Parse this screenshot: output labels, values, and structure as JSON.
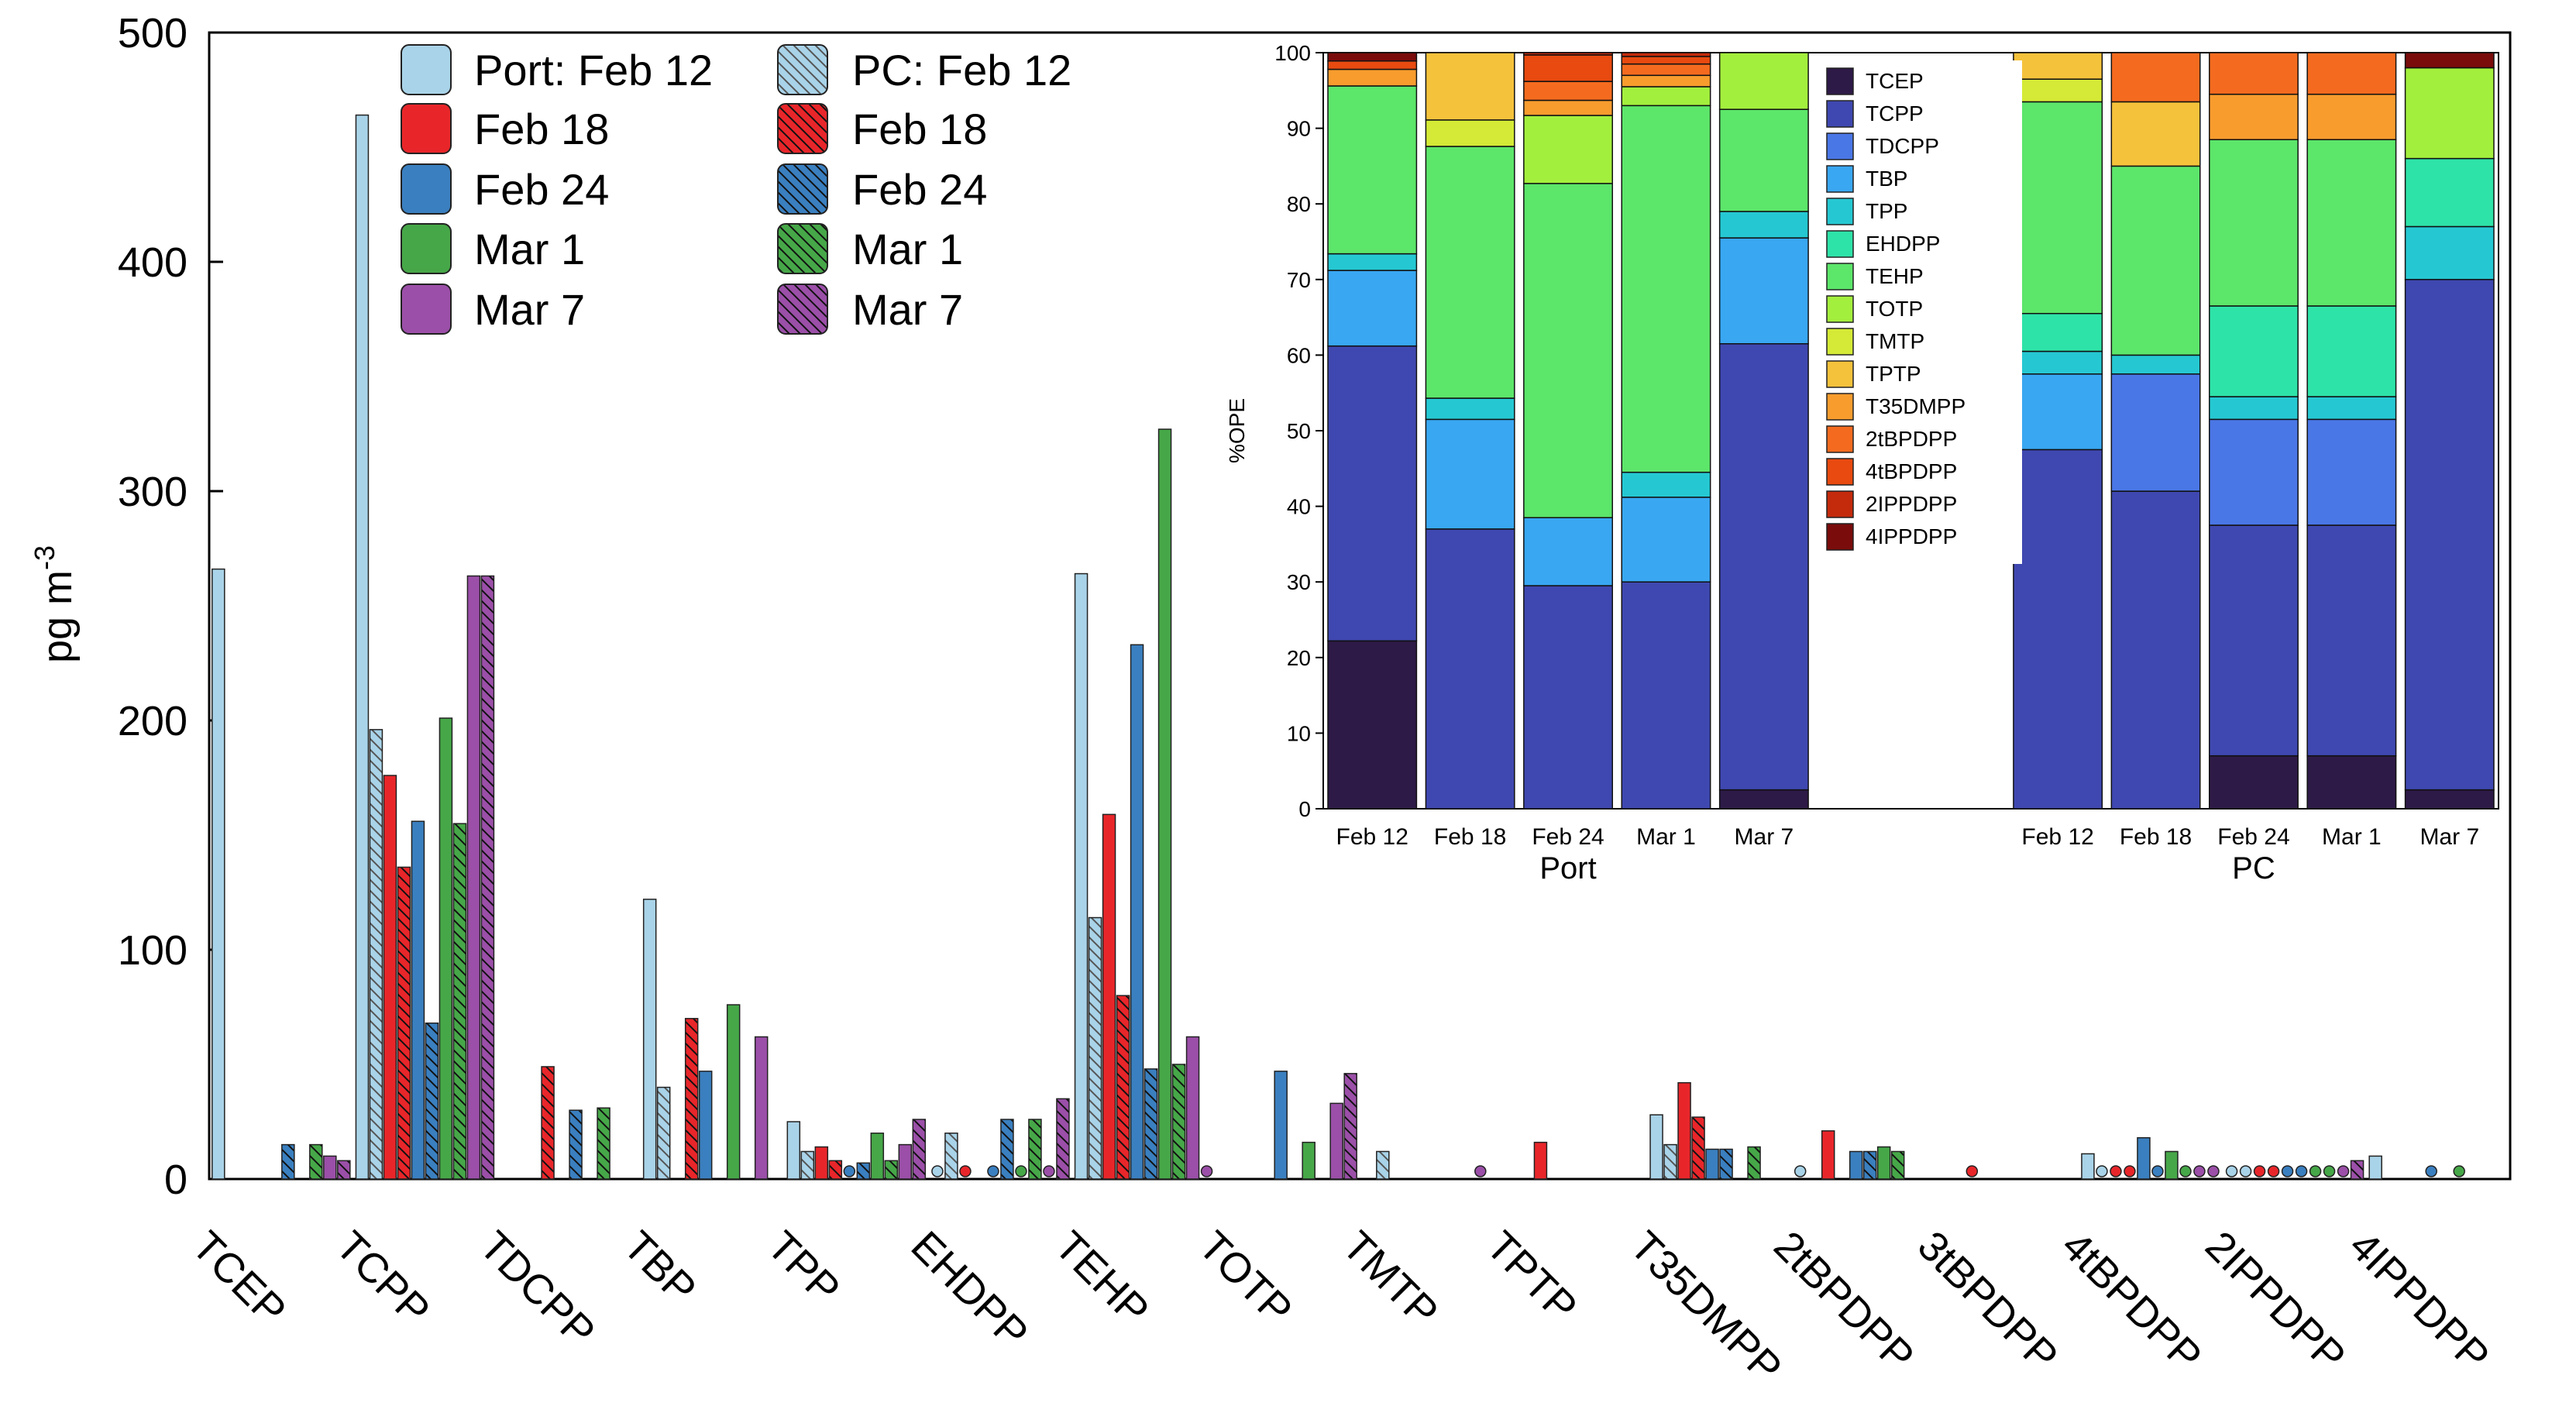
{
  "chart_data": [
    {
      "type": "bar",
      "ylabel": "pg m",
      "ylabel_sup": "-3",
      "ylim": [
        0,
        500
      ],
      "yticks": [
        0,
        100,
        200,
        300,
        400,
        500
      ],
      "categories": [
        "TCEP",
        "TCPP",
        "TDCPP",
        "TBP",
        "TPP",
        "EHDPP",
        "TEHP",
        "TOTP",
        "TMTP",
        "TPTP",
        "T35DMPP",
        "2tBPDPP",
        "3tBPDPP",
        "4tBPDPP",
        "2IPPDPP",
        "4IPPDPP"
      ],
      "legend": {
        "port_labels": [
          "Port: Feb 12",
          "Feb 18",
          "Feb 24",
          "Mar 1",
          "Mar 7"
        ],
        "pc_labels": [
          "PC: Feb 12",
          "Feb 18",
          "Feb 24",
          "Mar 1",
          "Mar 7"
        ]
      },
      "date_colors": [
        "#a9d3e8",
        "#e8262a",
        "#3a7fbf",
        "#46a748",
        "#9b4fa8"
      ],
      "series_order": [
        "Port Feb 12",
        "PC Feb 12",
        "Port Feb 18",
        "PC Feb 18",
        "Port Feb 24",
        "PC Feb 24",
        "Port Mar 1",
        "PC Mar 1",
        "Port Mar 7",
        "PC Mar 7"
      ],
      "values": {
        "TCEP": [
          266,
          0,
          0,
          0,
          0,
          15,
          0,
          15,
          10,
          8
        ],
        "TCPP": [
          464,
          196,
          176,
          136,
          156,
          68,
          201,
          155,
          263,
          263
        ],
        "TDCPP": [
          0,
          0,
          0,
          49,
          0,
          30,
          0,
          31,
          0,
          0
        ],
        "TBP": [
          122,
          40,
          0,
          70,
          47,
          0,
          76,
          0,
          62,
          0
        ],
        "TPP": [
          25,
          12,
          14,
          8,
          4,
          7,
          20,
          8,
          15,
          26
        ],
        "EHDPP": [
          4,
          20,
          4,
          0,
          4,
          26,
          4,
          26,
          4,
          35
        ],
        "TEHP": [
          264,
          114,
          159,
          80,
          233,
          48,
          327,
          50,
          62,
          4
        ],
        "TOTP": [
          0,
          0,
          0,
          0,
          47,
          0,
          16,
          0,
          33,
          46
        ],
        "TMTP": [
          0,
          12,
          0,
          0,
          0,
          0,
          0,
          0,
          4,
          0
        ],
        "TPTP": [
          0,
          0,
          16,
          0,
          0,
          0,
          0,
          0,
          0,
          0
        ],
        "T35DMPP": [
          28,
          15,
          42,
          27,
          13,
          13,
          0,
          14,
          0,
          0
        ],
        "2tBPDPP": [
          4,
          0,
          21,
          0,
          12,
          12,
          14,
          12,
          0,
          0
        ],
        "3tBPDPP": [
          0,
          0,
          4,
          0,
          0,
          0,
          0,
          0,
          0,
          0
        ],
        "4tBPDPP": [
          11,
          4,
          4,
          4,
          18,
          4,
          12,
          4,
          4,
          4
        ],
        "2IPPDPP": [
          4,
          4,
          4,
          4,
          4,
          4,
          4,
          4,
          4,
          8
        ],
        "4IPPDPP": [
          10,
          0,
          0,
          0,
          4,
          0,
          4,
          0,
          0,
          0
        ]
      }
    },
    {
      "type": "bar",
      "stacked": true,
      "ylabel": "%OPE",
      "ylim": [
        0,
        100
      ],
      "yticks": [
        0,
        10,
        20,
        30,
        40,
        50,
        60,
        70,
        80,
        90,
        100
      ],
      "group_labels": [
        "Port",
        "PC"
      ],
      "bar_labels": [
        "Feb 12",
        "Feb 18",
        "Feb 24",
        "Mar 1",
        "Mar 7"
      ],
      "compounds": [
        "TCEP",
        "TCPP",
        "TDCPP",
        "TBP",
        "TPP",
        "EHDPP",
        "TEHP",
        "TOTP",
        "TMTP",
        "TPTP",
        "T35DMPP",
        "2tBPDPP",
        "4tBPDPP",
        "2IPPDPP",
        "4IPPDPP"
      ],
      "colors": [
        "#2e1a47",
        "#3f48b0",
        "#4a77e6",
        "#39a7f2",
        "#25c8d2",
        "#2ee3a8",
        "#5ce66a",
        "#a3ef3d",
        "#d4ea36",
        "#f5c23b",
        "#f89c2e",
        "#f46b1f",
        "#e84a10",
        "#c42a0c",
        "#7a0c0c"
      ],
      "port": [
        [
          22.2,
          39.0,
          0,
          10.0,
          2.2,
          0,
          22.2,
          0,
          0,
          0,
          2.2,
          0,
          1.1,
          0,
          1.1
        ],
        [
          0,
          37.0,
          0,
          14.5,
          2.8,
          0,
          33.3,
          0,
          3.5,
          8.9,
          0,
          0,
          0,
          0,
          0
        ],
        [
          0,
          29.5,
          0,
          9.0,
          0,
          0,
          44.2,
          9.0,
          0,
          0,
          2.0,
          2.5,
          3.5,
          0.3,
          0
        ],
        [
          0,
          30.0,
          0,
          11.2,
          3.3,
          0,
          48.5,
          2.5,
          0,
          0,
          1.5,
          1.5,
          1.0,
          0.5,
          0
        ],
        [
          2.5,
          59.0,
          0,
          14.0,
          3.5,
          0,
          13.5,
          7.5,
          0,
          0,
          0,
          0,
          0,
          0,
          0
        ]
      ],
      "pc": [
        [
          0,
          47.5,
          0,
          10.0,
          3.0,
          5.0,
          28.0,
          0,
          3.0,
          3.5,
          0,
          0,
          0,
          0,
          0
        ],
        [
          0,
          42.0,
          15.5,
          0,
          2.5,
          0,
          25.0,
          0,
          0,
          8.5,
          0,
          6.5,
          0,
          0,
          0
        ],
        [
          7.0,
          30.5,
          14.0,
          0,
          3.0,
          12.0,
          22.0,
          0,
          0,
          0,
          6.0,
          5.5,
          0,
          0,
          0
        ],
        [
          7.0,
          30.5,
          14.0,
          0,
          3.0,
          12.0,
          22.0,
          0,
          0,
          0,
          6.0,
          5.5,
          0,
          0,
          0
        ],
        [
          2.5,
          67.5,
          0,
          0,
          7.0,
          9.0,
          0,
          12.0,
          0,
          0,
          0,
          0,
          0,
          0,
          2.0
        ]
      ]
    }
  ]
}
